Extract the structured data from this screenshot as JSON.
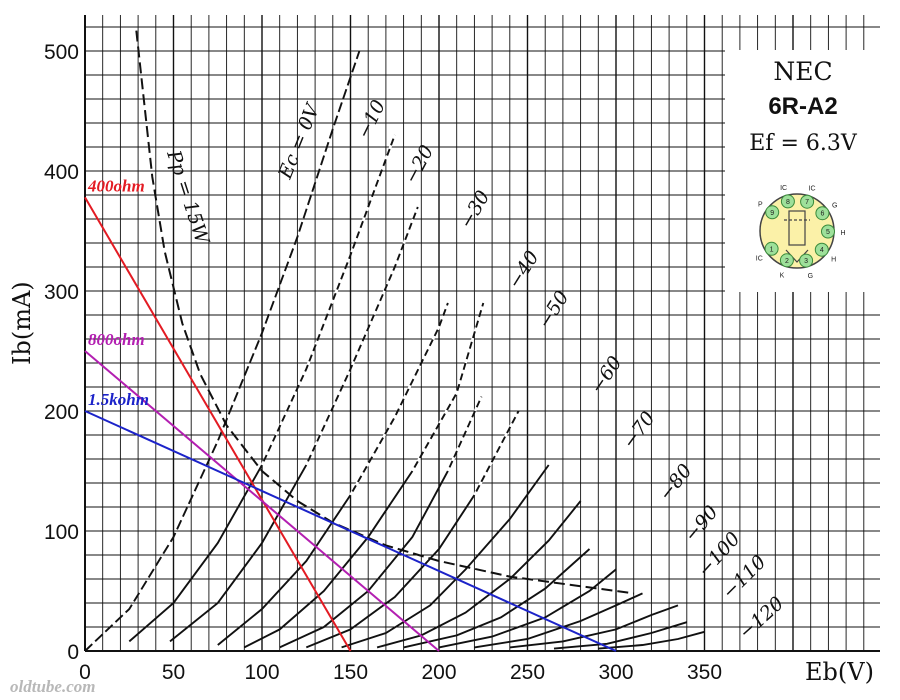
{
  "chart_data": {
    "type": "line",
    "title": "",
    "x_label": "Eb(V)",
    "y_label": "Ib(mA)",
    "xlim": [
      0,
      360
    ],
    "ylim": [
      0,
      520
    ],
    "grid": true,
    "x_ticks": [
      "0",
      "50",
      "100",
      "150",
      "200",
      "250",
      "300",
      "350"
    ],
    "y_ticks": [
      "0",
      "100",
      "200",
      "300",
      "400",
      "500"
    ],
    "info_box": {
      "manufacturer": "NEC",
      "tube": "6R-A2",
      "heater": "Ef = 6.3V",
      "pins": [
        {
          "n": "1",
          "label": "IC"
        },
        {
          "n": "2",
          "label": "K"
        },
        {
          "n": "3",
          "label": "G"
        },
        {
          "n": "4",
          "label": "H"
        },
        {
          "n": "5",
          "label": "H"
        },
        {
          "n": "6",
          "label": "G"
        },
        {
          "n": "7",
          "label": "IC"
        },
        {
          "n": "8",
          "label": "IC"
        },
        {
          "n": "9",
          "label": "P"
        }
      ]
    },
    "grid_bias_curves": [
      {
        "ec": "Ec = 0V",
        "points": [
          [
            0,
            0
          ],
          [
            25,
            35
          ],
          [
            50,
            95
          ],
          [
            75,
            175
          ],
          [
            100,
            265
          ],
          [
            120,
            345
          ],
          [
            140,
            435
          ],
          [
            155,
            500
          ]
        ]
      },
      {
        "ec": "−10",
        "points": [
          [
            25,
            8
          ],
          [
            50,
            40
          ],
          [
            75,
            90
          ],
          [
            100,
            155
          ],
          [
            125,
            235
          ],
          [
            150,
            330
          ],
          [
            175,
            430
          ]
        ]
      },
      {
        "ec": "−20",
        "points": [
          [
            48,
            8
          ],
          [
            75,
            40
          ],
          [
            100,
            90
          ],
          [
            125,
            155
          ],
          [
            150,
            235
          ],
          [
            175,
            320
          ],
          [
            188,
            370
          ]
        ]
      },
      {
        "ec": "−30",
        "points": [
          [
            75,
            5
          ],
          [
            100,
            35
          ],
          [
            125,
            75
          ],
          [
            150,
            130
          ],
          [
            175,
            195
          ],
          [
            200,
            270
          ],
          [
            205,
            290
          ]
        ]
      },
      {
        "ec": "−40",
        "points": [
          [
            90,
            3
          ],
          [
            110,
            18
          ],
          [
            135,
            50
          ],
          [
            160,
            95
          ],
          [
            185,
            150
          ],
          [
            210,
            215
          ],
          [
            225,
            290
          ]
        ]
      },
      {
        "ec": "−50",
        "points": [
          [
            110,
            3
          ],
          [
            135,
            20
          ],
          [
            160,
            50
          ],
          [
            185,
            95
          ],
          [
            205,
            150
          ],
          [
            224,
            212
          ]
        ]
      },
      {
        "ec": "−60",
        "points": [
          [
            125,
            3
          ],
          [
            150,
            18
          ],
          [
            175,
            45
          ],
          [
            200,
            85
          ],
          [
            220,
            130
          ],
          [
            245,
            200
          ]
        ]
      },
      {
        "ec": "−70",
        "points": [
          [
            145,
            3
          ],
          [
            170,
            15
          ],
          [
            195,
            38
          ],
          [
            215,
            68
          ],
          [
            240,
            110
          ],
          [
            262,
            155
          ]
        ]
      },
      {
        "ec": "−80",
        "points": [
          [
            165,
            3
          ],
          [
            190,
            13
          ],
          [
            215,
            32
          ],
          [
            240,
            60
          ],
          [
            262,
            92
          ],
          [
            280,
            125
          ]
        ]
      },
      {
        "ec": "−90",
        "points": [
          [
            180,
            3
          ],
          [
            210,
            13
          ],
          [
            235,
            28
          ],
          [
            260,
            52
          ],
          [
            285,
            85
          ]
        ]
      },
      {
        "ec": "−100",
        "points": [
          [
            200,
            3
          ],
          [
            230,
            12
          ],
          [
            260,
            28
          ],
          [
            285,
            50
          ],
          [
            300,
            68
          ]
        ]
      },
      {
        "ec": "−110",
        "points": [
          [
            220,
            3
          ],
          [
            250,
            10
          ],
          [
            280,
            25
          ],
          [
            300,
            38
          ],
          [
            315,
            48
          ]
        ]
      },
      {
        "ec": "−120",
        "points": [
          [
            240,
            3
          ],
          [
            270,
            8
          ],
          [
            300,
            18
          ],
          [
            320,
            30
          ],
          [
            335,
            38
          ]
        ]
      },
      {
        "ec": "",
        "points": [
          [
            265,
            2
          ],
          [
            295,
            6
          ],
          [
            320,
            15
          ],
          [
            340,
            24
          ]
        ]
      },
      {
        "ec": "",
        "points": [
          [
            290,
            2
          ],
          [
            315,
            5
          ],
          [
            335,
            10
          ],
          [
            350,
            16
          ]
        ]
      }
    ],
    "plate_dissipation": {
      "label": "Pp = 15W",
      "points": [
        [
          29,
          517
        ],
        [
          38,
          395
        ],
        [
          45,
          333
        ],
        [
          55,
          273
        ],
        [
          65,
          231
        ],
        [
          80,
          188
        ],
        [
          100,
          150
        ],
        [
          120,
          125
        ],
        [
          140,
          107
        ],
        [
          170,
          88
        ],
        [
          200,
          75
        ],
        [
          240,
          62
        ],
        [
          280,
          54
        ],
        [
          310,
          48
        ]
      ]
    },
    "load_lines": [
      {
        "name": "400ohm",
        "color": "#e31b23",
        "points": [
          [
            0,
            378
          ],
          [
            150,
            0
          ]
        ]
      },
      {
        "name": "800ohm",
        "color": "#b31fb1",
        "points": [
          [
            0,
            250
          ],
          [
            200,
            0
          ]
        ]
      },
      {
        "name": "1.5kohm",
        "color": "#1c23c9",
        "points": [
          [
            0,
            200
          ],
          [
            300,
            0
          ]
        ]
      }
    ]
  },
  "watermark": "oldtube.com"
}
